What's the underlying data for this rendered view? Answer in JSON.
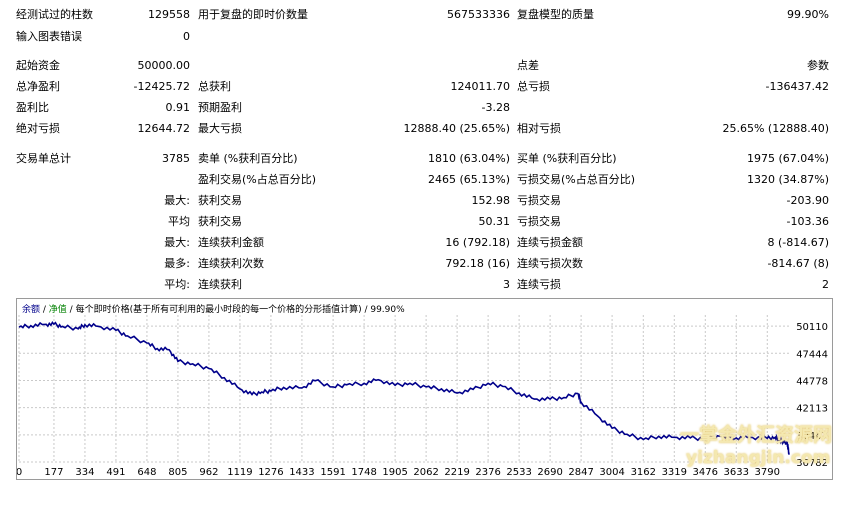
{
  "report": {
    "rows": [
      {
        "items": [
          {
            "text": "经测试过的柱数",
            "x": 16,
            "y": 8
          },
          {
            "text": "129558",
            "x": 190,
            "y": 8,
            "align": "right"
          },
          {
            "text": "用于复盘的即时价数量",
            "x": 198,
            "y": 8
          },
          {
            "text": "567533336",
            "x": 510,
            "y": 8,
            "align": "right"
          },
          {
            "text": "复盘模型的质量",
            "x": 517,
            "y": 8
          },
          {
            "text": "99.90%",
            "x": 829,
            "y": 8,
            "align": "right"
          }
        ]
      }
    ],
    "fields": {
      "bars_tested_label": "经测试过的柱数",
      "bars_tested_value": "129558",
      "ticks_label": "用于复盘的即时价数量",
      "ticks_value": "567533336",
      "quality_label": "复盘模型的质量",
      "quality_value": "99.90%",
      "chart_errors_label": "输入图表错误",
      "chart_errors_value": "0",
      "initial_deposit_label": "起始资金",
      "initial_deposit_value": "50000.00",
      "spread_label": "点差",
      "spread_value": "参数",
      "net_profit_label": "总净盈利",
      "net_profit_value": "-12425.72",
      "gross_profit_label": "总获利",
      "gross_profit_value": "124011.70",
      "gross_loss_label": "总亏损",
      "gross_loss_value": "-136437.42",
      "profit_factor_label": "盈利比",
      "profit_factor_value": "0.91",
      "expected_payoff_label": "预期盈利",
      "expected_payoff_value": "-3.28",
      "abs_drawdown_label": "绝对亏损",
      "abs_drawdown_value": "12644.72",
      "max_drawdown_label": "最大亏损",
      "max_drawdown_value": "12888.40 (25.65%)",
      "rel_drawdown_label": "相对亏损",
      "rel_drawdown_value": "25.65% (12888.40)",
      "total_trades_label": "交易单总计",
      "total_trades_value": "3785",
      "short_label": "卖单 (%获利百分比)",
      "short_value": "1810 (63.04%)",
      "long_label": "买单 (%获利百分比)",
      "long_value": "1975 (67.04%)",
      "profit_trades_label": "盈利交易(%占总百分比)",
      "profit_trades_value": "2465 (65.13%)",
      "loss_trades_label": "亏损交易(%占总百分比)",
      "loss_trades_value": "1320 (34.87%)",
      "largest_label": "最大:",
      "largest_profit_label": "获利交易",
      "largest_profit_value": "152.98",
      "largest_loss_label": "亏损交易",
      "largest_loss_value": "-203.90",
      "average_label": "平均",
      "average_profit_label": "获利交易",
      "average_profit_value": "50.31",
      "average_loss_label": "亏损交易",
      "average_loss_value": "-103.36",
      "max_label": "最大:",
      "max_cons_wins_label": "连续获利金额",
      "max_cons_wins_value": "16 (792.18)",
      "max_cons_losses_label": "连续亏损金额",
      "max_cons_losses_value": "8 (-814.67)",
      "most_label": "最多:",
      "most_cons_profit_label": "连续获利次数",
      "most_cons_profit_value": "792.18 (16)",
      "most_cons_loss_label": "连续亏损次数",
      "most_cons_loss_value": "-814.67 (8)",
      "avg_label": "平均:",
      "avg_cons_wins_label": "连续获利",
      "avg_cons_wins_value": "3",
      "avg_cons_losses_label": "连续亏损",
      "avg_cons_losses_value": "2"
    }
  },
  "legend": {
    "balance": "余额",
    "sep1": " / ",
    "equity": "净值",
    "sep2": " / ",
    "text": "每个即时价格(基于所有可利用的最小时段的每一个价格的分形插值计算) / 99.90%"
  },
  "watermark": {
    "line1": "一掌金外汇资源网",
    "line2": "yizhangjin.com"
  },
  "chart_data": {
    "type": "line",
    "series": [
      {
        "values": [
          50000,
          50150,
          50280,
          50300,
          50080,
          49850,
          50250,
          50090,
          49700,
          49150,
          48450,
          47900,
          47800,
          46650,
          46400,
          45950,
          45050,
          43950,
          43400,
          43650,
          43750,
          44100,
          44050,
          44750,
          44150,
          44350,
          44500,
          44850,
          44300,
          44500,
          44150,
          43950,
          43550,
          43900,
          44500,
          44200,
          43550,
          42950,
          42950,
          43100,
          43500,
          42650,
          41300,
          40100,
          39500,
          39000,
          39300,
          39200,
          39150,
          39050,
          39300,
          39150,
          39200,
          39100,
          39200,
          38900,
          38800,
          38700,
          38600,
          38300,
          37500
        ],
        "x": [
          0,
          60,
          130,
          177,
          220,
          300,
          334,
          400,
          491,
          550,
          648,
          700,
          760,
          805,
          880,
          962,
          1040,
          1119,
          1180,
          1230,
          1276,
          1340,
          1433,
          1500,
          1591,
          1660,
          1748,
          1820,
          1905,
          1980,
          2062,
          2140,
          2219,
          2300,
          2376,
          2450,
          2533,
          2610,
          2690,
          2760,
          2830,
          2847,
          2930,
          3004,
          3080,
          3162,
          3240,
          3319,
          3400,
          3476,
          3550,
          3633,
          3700,
          3790,
          3830,
          3850,
          3870,
          3880,
          3890,
          3895,
          3900
        ]
      }
    ],
    "x_ticks": [
      0,
      177,
      334,
      491,
      648,
      805,
      962,
      1119,
      1276,
      1433,
      1591,
      1748,
      1905,
      2062,
      2219,
      2376,
      2533,
      2690,
      2847,
      3004,
      3162,
      3319,
      3476,
      3633,
      3790
    ],
    "y_ticks": [
      50110,
      47444,
      44778,
      42113,
      39447,
      36782
    ],
    "xlim": [
      0,
      3900
    ],
    "ylim": [
      36782,
      51200
    ],
    "grid": true,
    "line_color": "#00008b"
  }
}
